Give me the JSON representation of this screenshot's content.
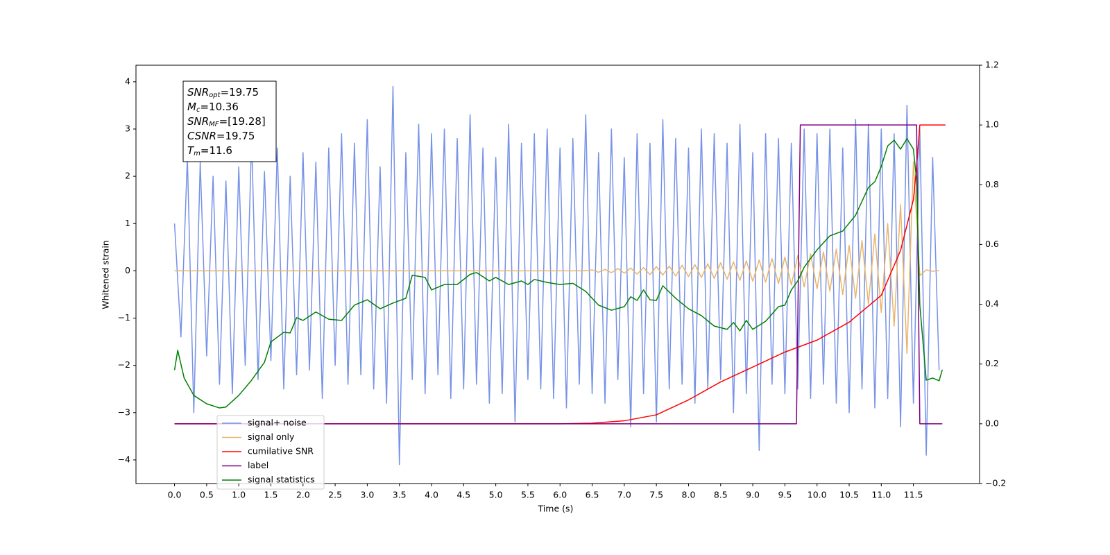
{
  "chart_data": {
    "type": "line",
    "xlabel": "Time (s)",
    "ylabel": "Whitened strain",
    "xlim": [
      -0.6,
      12.53
    ],
    "ylim": [
      -4.5,
      4.35
    ],
    "y2lim": [
      -0.2,
      1.2
    ],
    "xticks": [
      {
        "value": 0,
        "label": "0.0"
      },
      0.5,
      {
        "value": 1,
        "label": "1.0"
      },
      1.5,
      {
        "value": 2,
        "label": "2.0"
      },
      2.5,
      {
        "value": 3,
        "label": "3.0"
      },
      3.5,
      {
        "value": 4,
        "label": "4.0"
      },
      4.5,
      {
        "value": 5,
        "label": "5.0"
      },
      5.5,
      {
        "value": 6,
        "label": "6.0"
      },
      6.5,
      {
        "value": 7,
        "label": "7.0"
      },
      7.5,
      {
        "value": 8,
        "label": "8.0"
      },
      8.5,
      {
        "value": 9,
        "label": "9.0"
      },
      9.5,
      {
        "value": 10,
        "label": "10.0"
      },
      10.5,
      {
        "value": 11,
        "label": "11.0"
      },
      11.5
    ],
    "yticks": [
      {
        "value": -4,
        "label": "−4"
      },
      {
        "value": -3,
        "label": "−3"
      },
      {
        "value": -2,
        "label": "−2"
      },
      {
        "value": -1,
        "label": "−1"
      },
      0,
      1,
      2,
      3,
      4
    ],
    "y2ticks": [
      {
        "value": -0.2,
        "label": "−0.2"
      },
      {
        "value": 0,
        "label": "0.0"
      },
      0.2,
      0.4,
      0.6,
      0.8,
      {
        "value": 1,
        "label": "1.0"
      },
      1.2
    ],
    "legend": "lower left",
    "annotation": [
      {
        "text": "SNR",
        "sub": "opt",
        "rest": "=19.75"
      },
      {
        "text": "M",
        "sub": "c",
        "rest": "=10.36"
      },
      {
        "text": "SNR",
        "sub": "MF",
        "rest": "=[19.28]"
      },
      {
        "text": "CSNR",
        "rest": "=19.75"
      },
      {
        "text": "T",
        "sub": "m",
        "rest": "=11.6"
      }
    ],
    "x": [
      0,
      0.1,
      0.2,
      0.3,
      0.4,
      0.5,
      0.6,
      0.7,
      0.8,
      0.9,
      1,
      1.1,
      1.2,
      1.3,
      1.4,
      1.5,
      1.6,
      1.7,
      1.8,
      1.9,
      2,
      2.1,
      2.2,
      2.3,
      2.4,
      2.5,
      2.6,
      2.7,
      2.8,
      2.9,
      3,
      3.1,
      3.2,
      3.3,
      3.4,
      3.5,
      3.6,
      3.7,
      3.8,
      3.9,
      4,
      4.1,
      4.2,
      4.3,
      4.4,
      4.5,
      4.6,
      4.7,
      4.8,
      4.9,
      5,
      5.1,
      5.2,
      5.3,
      5.4,
      5.5,
      5.6,
      5.7,
      5.8,
      5.9,
      6,
      6.1,
      6.2,
      6.3,
      6.4,
      6.5,
      6.6,
      6.7,
      6.8,
      6.9,
      7,
      7.1,
      7.2,
      7.3,
      7.4,
      7.5,
      7.6,
      7.7,
      7.8,
      7.9,
      8,
      8.1,
      8.2,
      8.3,
      8.4,
      8.5,
      8.6,
      8.7,
      8.8,
      8.9,
      9,
      9.1,
      9.2,
      9.3,
      9.4,
      9.5,
      9.6,
      9.7,
      9.8,
      9.9,
      10,
      10.1,
      10.2,
      10.3,
      10.4,
      10.5,
      10.6,
      10.7,
      10.8,
      10.9,
      11,
      11.1,
      11.2,
      11.3,
      11.4,
      11.5,
      11.6,
      11.7,
      11.8,
      11.9
    ],
    "series": [
      {
        "name": "signal+ noise",
        "color": "#7792e7",
        "axis": "y",
        "values": [
          1.0,
          -1.4,
          2.4,
          -3.0,
          2.3,
          -1.8,
          2.0,
          -2.4,
          1.9,
          -2.6,
          2.2,
          -2.0,
          2.8,
          -2.3,
          2.1,
          -1.9,
          2.6,
          -2.5,
          2.0,
          -2.2,
          2.5,
          -2.1,
          2.3,
          -2.7,
          2.6,
          -2.0,
          2.9,
          -2.4,
          2.7,
          -2.2,
          3.2,
          -2.5,
          2.2,
          -2.8,
          3.9,
          -4.1,
          2.5,
          -2.3,
          3.1,
          -2.6,
          2.9,
          -2.2,
          3.0,
          -2.7,
          2.8,
          -2.5,
          3.3,
          -2.4,
          2.6,
          -2.8,
          2.4,
          -2.6,
          3.1,
          -3.2,
          2.7,
          -2.3,
          2.9,
          -2.5,
          3.0,
          -2.7,
          2.6,
          -2.9,
          2.8,
          -2.4,
          3.3,
          -2.6,
          2.5,
          -2.8,
          3.0,
          -2.3,
          2.4,
          -3.3,
          2.9,
          -2.6,
          2.7,
          -3.2,
          3.2,
          -2.5,
          2.8,
          -2.4,
          2.6,
          -2.8,
          3.0,
          -2.5,
          2.9,
          -2.3,
          2.7,
          -3.0,
          3.1,
          -2.6,
          2.5,
          -3.8,
          2.9,
          -2.4,
          2.8,
          -2.6,
          2.7,
          -2.5,
          3.0,
          -2.7,
          2.9,
          -2.4,
          3.0,
          -2.8,
          2.6,
          -3.0,
          3.2,
          -2.5,
          3.1,
          -2.9,
          3.0,
          -2.7,
          2.9,
          -3.3,
          3.5,
          -2.8,
          3.0,
          -3.9,
          2.4,
          -2.1
        ]
      },
      {
        "name": "signal only",
        "color": "#e8b46a",
        "axis": "y",
        "values": [
          0,
          0,
          0,
          0,
          0,
          0,
          0,
          0,
          0,
          0,
          0,
          0,
          0,
          0,
          0,
          0,
          0,
          0,
          0,
          0,
          0,
          0,
          0,
          0,
          0,
          0,
          0,
          0,
          0,
          0,
          0,
          0,
          0,
          0,
          0,
          0,
          0,
          0,
          0,
          0,
          0,
          0,
          0,
          0,
          0,
          0,
          0,
          0,
          0,
          0,
          0,
          0,
          0,
          0,
          0,
          0,
          0,
          0,
          0,
          0,
          0,
          0,
          0,
          0,
          0,
          0.02,
          -0.03,
          0.03,
          -0.04,
          0.05,
          -0.05,
          0.06,
          -0.07,
          0.07,
          -0.08,
          0.09,
          -0.09,
          0.1,
          -0.11,
          0.12,
          -0.12,
          0.13,
          -0.14,
          0.15,
          -0.16,
          0.17,
          -0.18,
          0.19,
          -0.2,
          0.21,
          -0.22,
          0.23,
          -0.24,
          0.26,
          -0.27,
          0.29,
          -0.3,
          0.32,
          -0.34,
          0.36,
          -0.38,
          0.4,
          -0.43,
          0.46,
          -0.5,
          0.54,
          -0.58,
          0.64,
          -0.7,
          0.78,
          -0.88,
          1.0,
          -1.17,
          1.4,
          -1.75,
          2.3,
          -0.1,
          0.02,
          -0.01,
          0.01
        ]
      },
      {
        "name": "cumilative SNR",
        "color": "#ff0000",
        "axis": "y2",
        "x": [
          0,
          6,
          6.5,
          7,
          7.5,
          8,
          8.5,
          9,
          9.5,
          10,
          10.5,
          11,
          11.3,
          11.5,
          11.55,
          11.6,
          12
        ],
        "values": [
          0,
          0,
          0.002,
          0.01,
          0.03,
          0.08,
          0.14,
          0.19,
          0.24,
          0.28,
          0.34,
          0.43,
          0.58,
          0.75,
          0.86,
          1,
          1
        ]
      },
      {
        "name": "label",
        "color": "#800080",
        "axis": "y2",
        "x": [
          0,
          9.68,
          9.74,
          11.55,
          11.6,
          11.95
        ],
        "values": [
          0,
          0,
          1,
          1,
          0,
          0
        ]
      },
      {
        "name": "signal statistics",
        "color": "#008000",
        "axis": "y2",
        "x": [
          0,
          0.05,
          0.15,
          0.3,
          0.5,
          0.7,
          0.8,
          1,
          1.2,
          1.4,
          1.5,
          1.7,
          1.8,
          1.9,
          2,
          2.2,
          2.4,
          2.6,
          2.8,
          3,
          3.2,
          3.4,
          3.6,
          3.7,
          3.9,
          4,
          4.2,
          4.4,
          4.6,
          4.7,
          4.9,
          5,
          5.2,
          5.4,
          5.5,
          5.6,
          5.8,
          6,
          6.2,
          6.4,
          6.6,
          6.8,
          7,
          7.1,
          7.2,
          7.3,
          7.4,
          7.5,
          7.6,
          7.8,
          8,
          8.2,
          8.4,
          8.6,
          8.7,
          8.8,
          8.9,
          9,
          9.2,
          9.4,
          9.5,
          9.6,
          9.7,
          9.8,
          10,
          10.2,
          10.4,
          10.6,
          10.8,
          10.9,
          11,
          11.1,
          11.2,
          11.3,
          11.4,
          11.5,
          11.55,
          11.6,
          11.7,
          11.8,
          11.9,
          11.95
        ],
        "values": [
          0.18,
          0.246,
          0.153,
          0.095,
          0.067,
          0.053,
          0.056,
          0.095,
          0.146,
          0.206,
          0.274,
          0.306,
          0.304,
          0.355,
          0.346,
          0.374,
          0.35,
          0.346,
          0.397,
          0.415,
          0.385,
          0.404,
          0.42,
          0.497,
          0.49,
          0.448,
          0.466,
          0.466,
          0.5,
          0.506,
          0.478,
          0.49,
          0.466,
          0.478,
          0.466,
          0.483,
          0.473,
          0.466,
          0.47,
          0.443,
          0.397,
          0.38,
          0.392,
          0.425,
          0.413,
          0.448,
          0.415,
          0.413,
          0.462,
          0.42,
          0.385,
          0.362,
          0.327,
          0.316,
          0.339,
          0.311,
          0.346,
          0.316,
          0.343,
          0.392,
          0.397,
          0.448,
          0.478,
          0.524,
          0.582,
          0.629,
          0.645,
          0.698,
          0.791,
          0.81,
          0.861,
          0.93,
          0.949,
          0.919,
          0.954,
          0.919,
          0.814,
          0.397,
          0.146,
          0.153,
          0.144,
          0.181
        ]
      }
    ]
  }
}
